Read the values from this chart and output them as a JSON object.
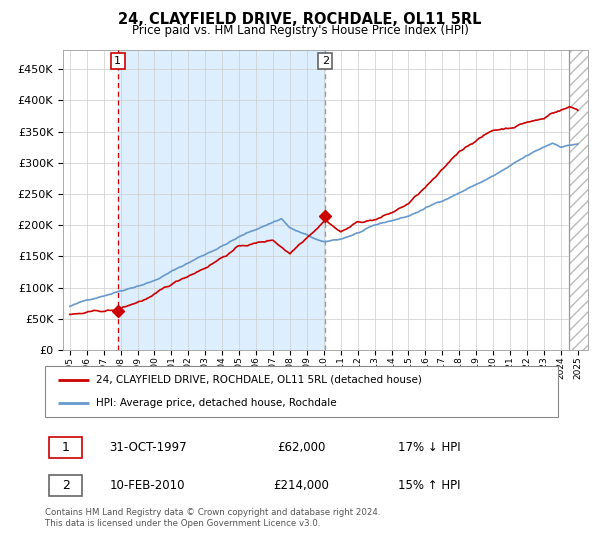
{
  "title": "24, CLAYFIELD DRIVE, ROCHDALE, OL11 5RL",
  "subtitle": "Price paid vs. HM Land Registry's House Price Index (HPI)",
  "legend_line1": "24, CLAYFIELD DRIVE, ROCHDALE, OL11 5RL (detached house)",
  "legend_line2": "HPI: Average price, detached house, Rochdale",
  "sale1_date": "31-OCT-1997",
  "sale1_price": 62000,
  "sale1_label": "17% ↓ HPI",
  "sale2_date": "10-FEB-2010",
  "sale2_price": 214000,
  "sale2_label": "15% ↑ HPI",
  "footnote": "Contains HM Land Registry data © Crown copyright and database right 2024.\nThis data is licensed under the Open Government Licence v3.0.",
  "hpi_color": "#6699cc",
  "price_color": "#cc0000",
  "bg_color": "#ddeeff",
  "hatch_color": "#bbbbbb",
  "ylim": [
    0,
    480000
  ],
  "yticks": [
    0,
    50000,
    100000,
    150000,
    200000,
    250000,
    300000,
    350000,
    400000,
    450000
  ],
  "sale1_t": 1997.833,
  "sale2_t": 2010.083,
  "year_start": 1995,
  "year_end": 2025
}
